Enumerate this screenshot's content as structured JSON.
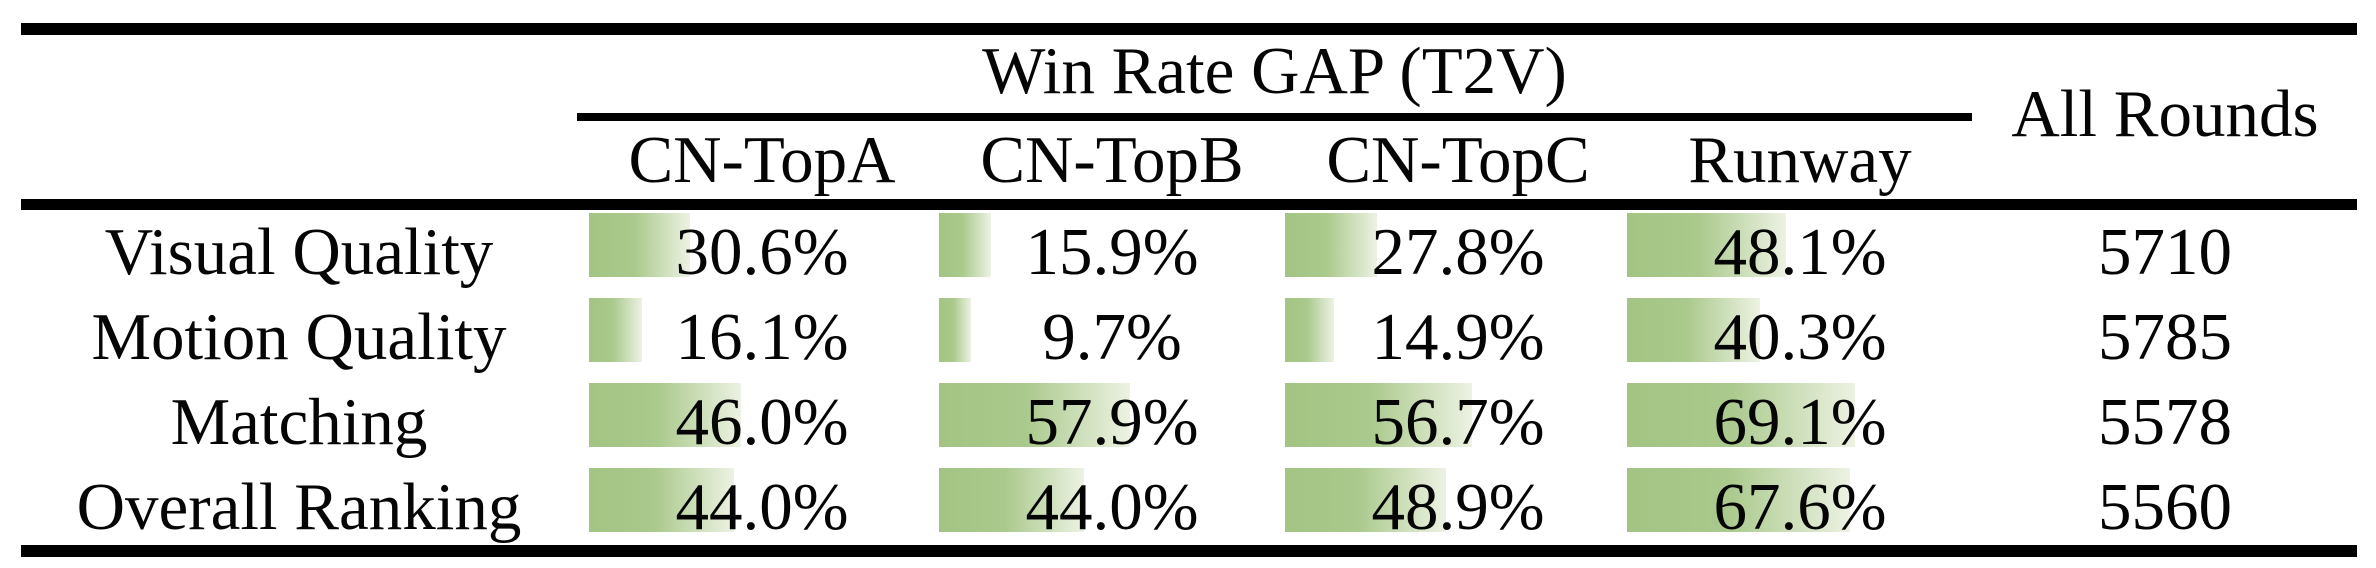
{
  "table": {
    "title": "Win Rate GAP (T2V)",
    "all_rounds_header": "All Rounds",
    "columns": [
      "CN-TopA",
      "CN-TopB",
      "CN-TopC",
      "Runway"
    ],
    "rows": [
      {
        "label": "Visual Quality",
        "cells": [
          {
            "pct": 30.6,
            "text": "30.6%"
          },
          {
            "pct": 15.9,
            "text": "15.9%"
          },
          {
            "pct": 27.8,
            "text": "27.8%"
          },
          {
            "pct": 48.1,
            "text": "48.1%"
          }
        ],
        "rounds": "5710"
      },
      {
        "label": "Motion Quality",
        "cells": [
          {
            "pct": 16.1,
            "text": "16.1%"
          },
          {
            "pct": 9.7,
            "text": "9.7%"
          },
          {
            "pct": 14.9,
            "text": "14.9%"
          },
          {
            "pct": 40.3,
            "text": "40.3%"
          }
        ],
        "rounds": "5785"
      },
      {
        "label": "Matching",
        "cells": [
          {
            "pct": 46.0,
            "text": "46.0%"
          },
          {
            "pct": 57.9,
            "text": "57.9%"
          },
          {
            "pct": 56.7,
            "text": "56.7%"
          },
          {
            "pct": 69.1,
            "text": "69.1%"
          }
        ],
        "rounds": "5578"
      },
      {
        "label": "Overall Ranking",
        "cells": [
          {
            "pct": 44.0,
            "text": "44.0%"
          },
          {
            "pct": 44.0,
            "text": "44.0%"
          },
          {
            "pct": 48.9,
            "text": "48.9%"
          },
          {
            "pct": 67.6,
            "text": "67.6%"
          }
        ],
        "rounds": "5560"
      }
    ],
    "bar_color_start": "#a3c483",
    "bar_color_end": "#edf2e3",
    "rule_color": "#000000"
  },
  "chart_data": {
    "type": "table",
    "title": "Win Rate GAP (T2V)",
    "columns": [
      "CN-TopA",
      "CN-TopB",
      "CN-TopC",
      "Runway",
      "All Rounds"
    ],
    "rows": [
      {
        "label": "Visual Quality",
        "win_rate_gap_pct": [
          30.6,
          15.9,
          27.8,
          48.1
        ],
        "all_rounds": 5710
      },
      {
        "label": "Motion Quality",
        "win_rate_gap_pct": [
          16.1,
          9.7,
          14.9,
          40.3
        ],
        "all_rounds": 5785
      },
      {
        "label": "Matching",
        "win_rate_gap_pct": [
          46.0,
          57.9,
          56.7,
          69.1
        ],
        "all_rounds": 5578
      },
      {
        "label": "Overall Ranking",
        "win_rate_gap_pct": [
          44.0,
          44.0,
          48.9,
          67.6
        ],
        "all_rounds": 5560
      }
    ],
    "notes": "Green in-cell bars encode win-rate-gap percentages; bar length proportional to value."
  }
}
